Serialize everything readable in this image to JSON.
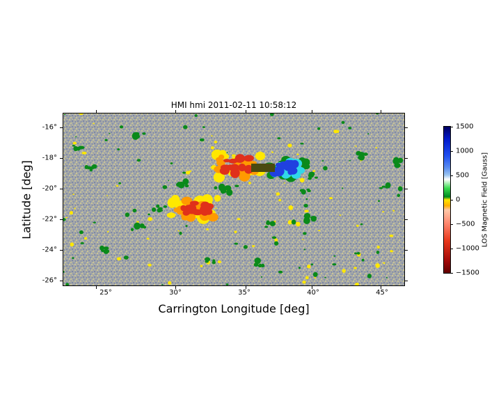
{
  "figure": {
    "title": "HMI hmi 2011-02-11 10:58:12",
    "xlabel": "Carrington Longitude [deg]",
    "ylabel": "Latitude [deg]",
    "x_ticks": [
      "25°",
      "30°",
      "35°",
      "40°",
      "45°"
    ],
    "y_ticks": [
      "-16°",
      "-18°",
      "-20°",
      "-22°",
      "-24°",
      "-26°"
    ],
    "x_range_deg": [
      21.8,
      46.8
    ],
    "y_range_deg": [
      -26.3,
      -15
    ]
  },
  "colorbar": {
    "label": "LOS Magnetic Field [Gauss]",
    "ticks": [
      "1500",
      "1000",
      "500",
      "0",
      "−500",
      "−1000",
      "−1500"
    ],
    "range": [
      -1500,
      1500
    ]
  },
  "colors": {
    "background_gray": "#9aa0a8",
    "speckle_light": "#c8c49a",
    "speckle_dark": "#7f8ba4",
    "green": "#0a8a1a",
    "yellow": "#ffe800",
    "orange": "#ff9a00",
    "red": "#e0301a",
    "blue": "#2040e0",
    "cyan": "#30d8e8",
    "darkolive": "#4a4a10"
  }
}
